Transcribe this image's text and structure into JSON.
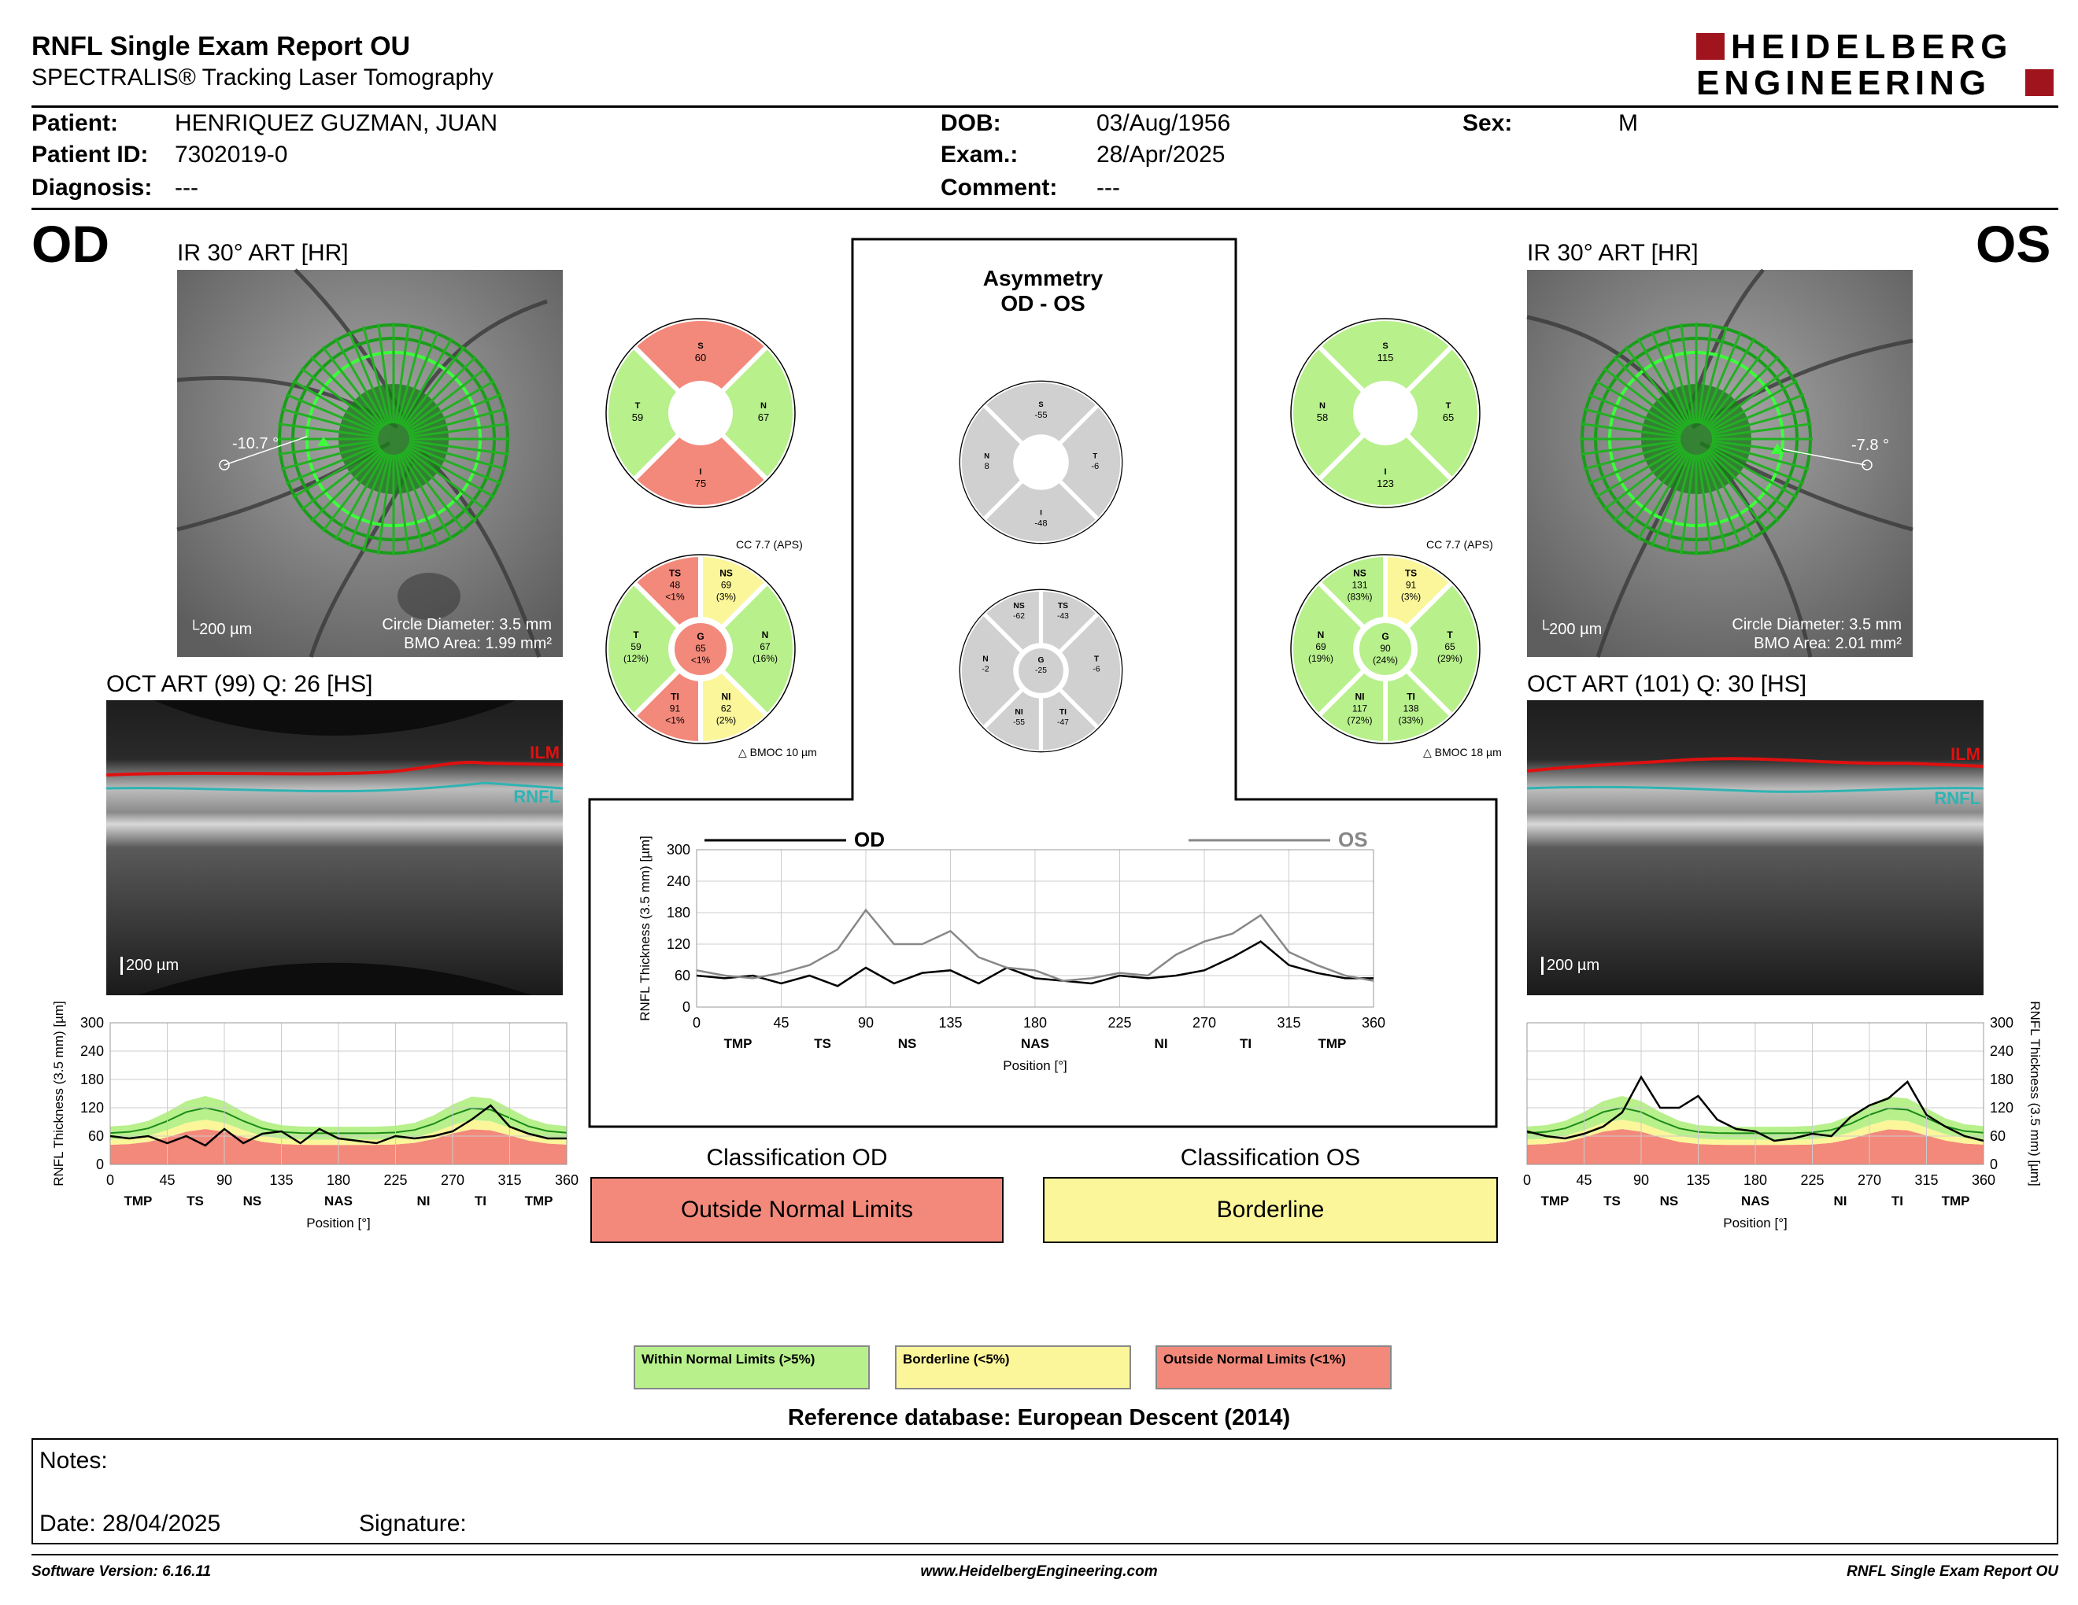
{
  "header": {
    "title": "RNFL Single Exam Report OU",
    "subtitle": "SPECTRALIS® Tracking Laser Tomography",
    "logo_line1": "HEIDELBERG",
    "logo_line2": "ENGINEERING"
  },
  "patient": {
    "patient_label": "Patient:",
    "patient_value": "HENRIQUEZ GUZMAN, JUAN",
    "id_label": "Patient ID:",
    "id_value": "7302019-0",
    "diagnosis_label": "Diagnosis:",
    "diagnosis_value": "---",
    "dob_label": "DOB:",
    "dob_value": "03/Aug/1956",
    "exam_label": "Exam.:",
    "exam_value": "28/Apr/2025",
    "comment_label": "Comment:",
    "comment_value": "---",
    "sex_label": "Sex:",
    "sex_value": "M"
  },
  "od": {
    "eye": "OD",
    "ir_title": "IR 30° ART [HR]",
    "angle": "-10.7 °",
    "scale": "200 µm",
    "circle_diameter": "Circle Diameter: 3.5 mm",
    "bmo_area": "BMO Area: 1.99 mm²",
    "oct_title": "OCT ART (99) Q: 26 [HS]",
    "oct_scale": "200 µm",
    "ilm": "ILM",
    "rnfl": "RNFL",
    "cc": "CC 7.7 (APS)",
    "bmoc": "BMOC 10 µm",
    "quad": {
      "S": "60",
      "T": "59",
      "N": "67",
      "I": "75"
    },
    "sectors": {
      "TS": [
        "TS",
        "48",
        "<1%"
      ],
      "NS": [
        "NS",
        "69",
        "(3%)"
      ],
      "T": [
        "T",
        "59",
        "(12%)"
      ],
      "G": [
        "G",
        "65",
        "<1%"
      ],
      "N": [
        "N",
        "67",
        "(16%)"
      ],
      "TI": [
        "TI",
        "91",
        "<1%"
      ],
      "NI": [
        "NI",
        "62",
        "(2%)"
      ]
    }
  },
  "os": {
    "eye": "OS",
    "ir_title": "IR 30° ART [HR]",
    "angle": "-7.8 °",
    "scale": "200 µm",
    "circle_diameter": "Circle Diameter: 3.5 mm",
    "bmo_area": "BMO Area: 2.01 mm²",
    "oct_title": "OCT ART (101) Q: 30 [HS]",
    "oct_scale": "200 µm",
    "ilm": "ILM",
    "rnfl": "RNFL",
    "cc": "CC 7.7 (APS)",
    "bmoc": "BMOC 18 µm",
    "quad": {
      "S": "115",
      "N": "58",
      "T": "65",
      "I": "123"
    },
    "sectors": {
      "NS": [
        "NS",
        "131",
        "(83%)"
      ],
      "TS": [
        "TS",
        "91",
        "(3%)"
      ],
      "N": [
        "N",
        "69",
        "(19%)"
      ],
      "G": [
        "G",
        "90",
        "(24%)"
      ],
      "T": [
        "T",
        "65",
        "(29%)"
      ],
      "NI": [
        "NI",
        "117",
        "(72%)"
      ],
      "TI": [
        "TI",
        "138",
        "(33%)"
      ]
    }
  },
  "asymmetry": {
    "title1": "Asymmetry",
    "title2": "OD - OS",
    "quad": {
      "S": "-55",
      "N": "8",
      "T": "-6",
      "I": "-48"
    },
    "sectors": {
      "NS": "-62",
      "TS": "-43",
      "N": "-2",
      "G": "-25",
      "T": "-6",
      "NI": "-55",
      "TI": "-47"
    },
    "sector_labels": {
      "NS": "NS",
      "TS": "TS",
      "N": "N",
      "G": "G",
      "T": "T",
      "NI": "NI",
      "TI": "TI"
    }
  },
  "chart_common": {
    "ylabel": "RNFL Thickness (3.5 mm) [µm]",
    "xlabel": "Position [°]",
    "x_ticks": [
      "0",
      "45",
      "90",
      "135",
      "180",
      "225",
      "270",
      "315",
      "360"
    ],
    "y_ticks": [
      "0",
      "60",
      "120",
      "180",
      "240",
      "300"
    ],
    "regions": [
      "TMP",
      "TS",
      "NS",
      "NAS",
      "NI",
      "TI",
      "TMP"
    ],
    "legend_od": "OD",
    "legend_os": "OS"
  },
  "chart_data": [
    {
      "type": "line",
      "title": "",
      "xlabel": "Position [°]",
      "ylabel": "RNFL Thickness (3.5 mm) [µm]",
      "xlim": [
        0,
        360
      ],
      "ylim": [
        0,
        300
      ],
      "x": [
        0,
        15,
        30,
        45,
        60,
        75,
        90,
        105,
        120,
        135,
        150,
        165,
        180,
        195,
        210,
        225,
        240,
        255,
        270,
        285,
        300,
        315,
        330,
        345,
        360
      ],
      "series": [
        {
          "name": "OD",
          "color": "#000000",
          "values": [
            60,
            55,
            60,
            45,
            60,
            40,
            75,
            45,
            65,
            70,
            45,
            75,
            55,
            50,
            45,
            60,
            55,
            60,
            70,
            95,
            125,
            80,
            65,
            55,
            55
          ]
        },
        {
          "name": "OS",
          "color": "#888888",
          "values": [
            70,
            60,
            55,
            65,
            80,
            110,
            185,
            120,
            120,
            145,
            95,
            75,
            70,
            50,
            55,
            65,
            60,
            100,
            125,
            140,
            175,
            105,
            80,
            60,
            50
          ]
        }
      ]
    },
    {
      "type": "area",
      "title": "",
      "xlabel": "Position [°]",
      "ylabel": "RNFL Thickness (3.5 mm) [µm]",
      "xlim": [
        0,
        360
      ],
      "ylim": [
        0,
        300
      ],
      "x": [
        0,
        15,
        30,
        45,
        60,
        75,
        90,
        105,
        120,
        135,
        150,
        165,
        180,
        195,
        210,
        225,
        240,
        255,
        270,
        285,
        300,
        315,
        330,
        345,
        360
      ],
      "series": [
        {
          "name": "OD",
          "color": "#000000",
          "values": [
            60,
            55,
            60,
            45,
            60,
            40,
            75,
            45,
            65,
            70,
            45,
            75,
            55,
            50,
            45,
            60,
            55,
            60,
            70,
            95,
            125,
            80,
            65,
            55,
            55
          ]
        }
      ]
    },
    {
      "type": "area",
      "title": "",
      "xlabel": "Position [°]",
      "ylabel": "RNFL Thickness (3.5 mm) [µm]",
      "xlim": [
        0,
        360
      ],
      "ylim": [
        0,
        300
      ],
      "x": [
        0,
        15,
        30,
        45,
        60,
        75,
        90,
        105,
        120,
        135,
        150,
        165,
        180,
        195,
        210,
        225,
        240,
        255,
        270,
        285,
        300,
        315,
        330,
        345,
        360
      ],
      "series": [
        {
          "name": "OS",
          "color": "#000000",
          "values": [
            70,
            60,
            55,
            65,
            80,
            110,
            185,
            120,
            120,
            145,
            95,
            75,
            70,
            50,
            55,
            65,
            60,
            100,
            125,
            140,
            175,
            105,
            80,
            60,
            50
          ]
        }
      ]
    }
  ],
  "classification": {
    "od_label": "Classification OD",
    "od_value": "Outside Normal Limits",
    "os_label": "Classification OS",
    "os_value": "Borderline"
  },
  "legend": {
    "within": "Within Normal Limits (>5%)",
    "borderline": "Borderline (<5%)",
    "outside": "Outside Normal Limits (<1%)",
    "colors": {
      "within": "#b8f08c",
      "borderline": "#fbf69a",
      "outside": "#f3897b",
      "grey": "#d0d0d0"
    }
  },
  "reference": "Reference database: European Descent (2014)",
  "notes": {
    "notes_label": "Notes:",
    "date_label": "Date: 28/04/2025",
    "signature_label": "Signature:"
  },
  "footer": {
    "software": "Software Version: 6.16.11",
    "website": "www.HeidelbergEngineering.com",
    "report": "RNFL Single Exam Report OU"
  }
}
